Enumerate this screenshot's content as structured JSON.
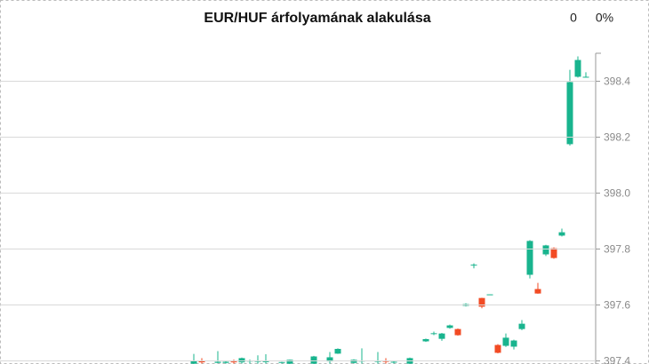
{
  "chart_data": {
    "type": "candlestick",
    "title": "EUR/HUF árfolyamának alakulása",
    "header_stats": [
      "0",
      "0%"
    ],
    "ylim": [
      397.389,
      398.5
    ],
    "yticks": [
      397.4,
      397.6,
      397.8,
      {
        "value": 398,
        "label": "398.0"
      },
      398.2,
      398.4
    ],
    "grid": true,
    "up_color": "#19b48e",
    "down_color": "#f24b24",
    "open": [
      397.39,
      397.4,
      null,
      397.393,
      397.393,
      397.398,
      397.395,
      397.4,
      397.398,
      397.397,
      null,
      397.394,
      397.39,
      null,
      null,
      397.39,
      null,
      397.398,
      397.426,
      null,
      397.393,
      397.4,
      null,
      397.398,
      397.4,
      397.395,
      null,
      397.39,
      null,
      397.47,
      397.497,
      397.479,
      397.518,
      397.514,
      397.597,
      397.743,
      397.625,
      397.636,
      397.457,
      397.454,
      397.451,
      397.514,
      397.708,
      397.657,
      397.781,
      397.803,
      397.848,
      398.175,
      398.416,
      398.413
    ],
    "high": [
      397.425,
      397.41,
      null,
      397.435,
      397.4,
      397.405,
      397.412,
      397.405,
      397.42,
      397.424,
      null,
      397.397,
      397.405,
      null,
      null,
      397.418,
      null,
      397.432,
      397.445,
      null,
      397.406,
      397.445,
      null,
      397.432,
      397.41,
      397.4,
      null,
      397.412,
      null,
      397.48,
      397.505,
      397.5,
      397.53,
      397.516,
      397.606,
      397.749,
      397.626,
      397.638,
      397.46,
      397.498,
      397.476,
      397.546,
      397.832,
      397.679,
      397.815,
      397.806,
      397.873,
      398.441,
      398.489,
      398.432
    ],
    "low": [
      397.385,
      397.39,
      null,
      397.392,
      397.39,
      397.39,
      397.39,
      397.39,
      397.39,
      397.39,
      null,
      397.39,
      397.388,
      null,
      null,
      397.388,
      null,
      397.39,
      397.425,
      null,
      397.39,
      397.39,
      null,
      397.39,
      397.39,
      397.39,
      null,
      397.388,
      null,
      397.468,
      397.492,
      397.472,
      397.515,
      397.49,
      397.595,
      397.731,
      397.588,
      397.636,
      397.427,
      397.45,
      397.441,
      397.51,
      397.695,
      397.64,
      397.775,
      397.765,
      397.845,
      398.17,
      398.413,
      398.413
    ],
    "close": [
      397.4,
      397.395,
      null,
      397.397,
      397.397,
      397.395,
      397.41,
      397.401,
      397.4,
      397.399,
      null,
      397.396,
      397.404,
      null,
      null,
      397.416,
      null,
      397.413,
      397.443,
      null,
      397.404,
      397.401,
      null,
      397.4,
      397.397,
      397.397,
      null,
      397.41,
      null,
      397.478,
      397.499,
      397.498,
      397.527,
      397.492,
      397.603,
      397.744,
      397.594,
      397.638,
      397.429,
      397.483,
      397.473,
      397.533,
      397.829,
      397.641,
      397.813,
      397.768,
      397.86,
      398.397,
      398.476,
      398.416
    ]
  }
}
